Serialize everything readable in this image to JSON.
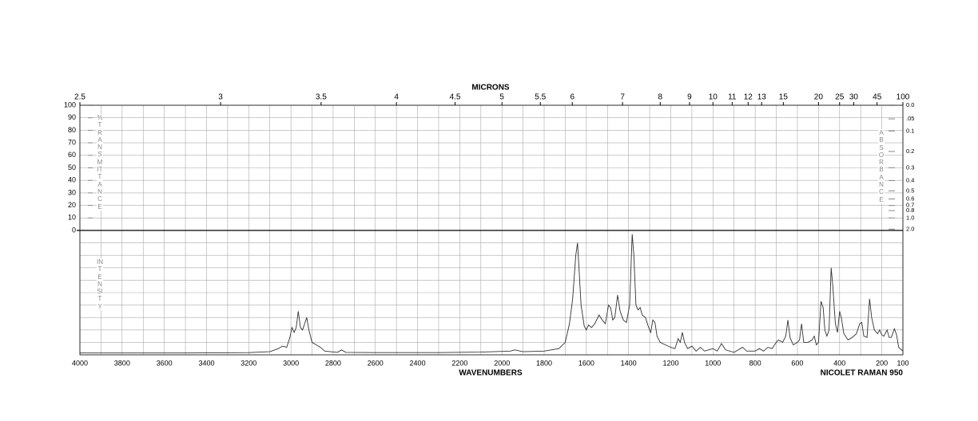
{
  "chart_data": {
    "type": "line",
    "title": "MICRONS",
    "x_label": "WAVENUMBERS",
    "annotation": "NICOLET RAMAN 950",
    "y_label": "%TRANSMITTANCE",
    "y2_label": "ABSORBANCE",
    "intensity_label": "INTENSITY",
    "xlim": [
      4000,
      100
    ],
    "xticks": [
      4000,
      3800,
      3600,
      3400,
      3200,
      3000,
      2800,
      2600,
      2400,
      2200,
      2000,
      1800,
      1600,
      1400,
      1200,
      1000,
      800,
      600,
      400,
      200,
      100
    ],
    "x2ticks": [
      2.5,
      3,
      3.5,
      4,
      4.5,
      5,
      5.5,
      6,
      7,
      8,
      9,
      10,
      11,
      12,
      13,
      15,
      20,
      25,
      30,
      45,
      100
    ],
    "ylim": [
      0,
      100
    ],
    "yticks": [
      0,
      10,
      20,
      30,
      40,
      50,
      60,
      70,
      80,
      90,
      100
    ],
    "y2ticks": [
      {
        "value": 0,
        "label": "0.0"
      },
      {
        "value": 0.05,
        "label": ".05"
      },
      {
        "value": 0.1,
        "label": "0.1"
      },
      {
        "value": 0.2,
        "label": "0.2"
      },
      {
        "value": 0.3,
        "label": "0.3"
      },
      {
        "value": 0.4,
        "label": "0.4"
      },
      {
        "value": 0.5,
        "label": "0.5"
      },
      {
        "value": 0.6,
        "label": "0.6"
      },
      {
        "value": 0.7,
        "label": "0.7"
      },
      {
        "value": 0.8,
        "label": "0.8"
      },
      {
        "value": 1,
        "label": "1.0"
      },
      {
        "value": 2,
        "label": "2.0"
      }
    ],
    "intensity_lim": [
      0,
      100
    ],
    "grid": true,
    "series": [
      {
        "color": "#333333",
        "x": [
          4000,
          3500,
          3200,
          3100,
          3060,
          3040,
          3020,
          3005,
          2995,
          2985,
          2975,
          2965,
          2955,
          2945,
          2935,
          2925,
          2915,
          2900,
          2880,
          2860,
          2840,
          2780,
          2760,
          2740,
          2600,
          2300,
          2100,
          1960,
          1940,
          1900,
          1800,
          1730,
          1700,
          1680,
          1665,
          1650,
          1642,
          1635,
          1625,
          1610,
          1600,
          1590,
          1575,
          1560,
          1540,
          1525,
          1510,
          1495,
          1485,
          1475,
          1465,
          1452,
          1440,
          1425,
          1410,
          1395,
          1383,
          1375,
          1365,
          1355,
          1345,
          1335,
          1320,
          1305,
          1295,
          1285,
          1275,
          1265,
          1250,
          1200,
          1180,
          1165,
          1155,
          1145,
          1135,
          1120,
          1100,
          1080,
          1060,
          1040,
          1000,
          980,
          960,
          940,
          900,
          860,
          840,
          800,
          780,
          760,
          740,
          720,
          700,
          690,
          670,
          655,
          645,
          635,
          620,
          600,
          590,
          580,
          570,
          550,
          530,
          520,
          510,
          500,
          488,
          478,
          470,
          460,
          450,
          440,
          432,
          420,
          410,
          400,
          392,
          380,
          360,
          340,
          320,
          305,
          295,
          285,
          270,
          258,
          248,
          235,
          220,
          210,
          200,
          190,
          175,
          165,
          155,
          140,
          130,
          120,
          100
        ],
        "values": [
          1.5,
          1.5,
          1.8,
          2.5,
          5,
          7,
          6,
          14,
          22,
          18,
          22,
          35,
          22,
          20,
          25,
          30,
          20,
          10,
          8,
          6,
          3,
          2,
          4,
          2,
          1.8,
          1.8,
          2.2,
          3,
          4,
          2.5,
          3,
          5,
          10,
          25,
          45,
          80,
          90,
          70,
          40,
          23,
          20,
          24,
          22,
          25,
          32,
          28,
          25,
          40,
          38,
          28,
          30,
          48,
          35,
          28,
          26,
          40,
          97,
          80,
          40,
          36,
          38,
          32,
          30,
          22,
          18,
          28,
          26,
          15,
          10,
          6,
          5,
          13,
          10,
          18,
          10,
          5,
          7,
          3,
          6,
          3,
          5,
          3,
          9,
          4,
          2,
          6,
          3,
          3,
          5,
          3,
          6,
          5,
          10,
          12,
          10,
          15,
          28,
          14,
          8,
          10,
          12,
          25,
          10,
          10,
          12,
          15,
          8,
          10,
          43,
          38,
          20,
          15,
          20,
          70,
          55,
          25,
          18,
          35,
          30,
          17,
          12,
          14,
          17,
          25,
          26,
          15,
          14,
          45,
          30,
          20,
          17,
          20,
          16,
          15,
          20,
          14,
          14,
          21,
          16,
          6,
          3
        ]
      }
    ]
  }
}
